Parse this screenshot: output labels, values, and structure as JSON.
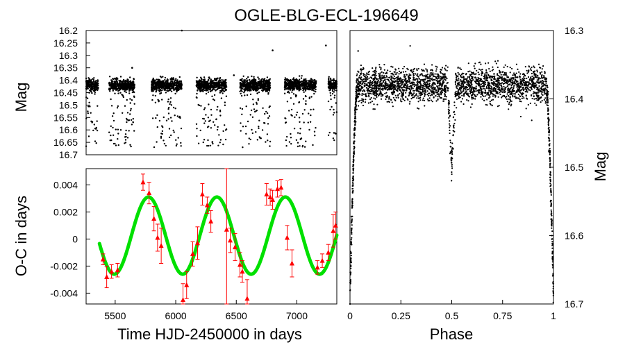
{
  "title": "OGLE-BLG-ECL-196649",
  "colors": {
    "points": "#000000",
    "oc_points": "#ff0000",
    "fit": "#00e000"
  },
  "chart_data": [
    {
      "id": "light-curve",
      "type": "scatter",
      "description_series": "photometry in magnitudes vs time",
      "xlabel": "",
      "ylabel": "Mag",
      "xlim": [
        5260,
        7330
      ],
      "ylim": [
        16.7,
        16.2
      ],
      "y_inverted": true,
      "yticks": [
        "16.2",
        "16.25",
        "16.3",
        "16.35",
        "16.4",
        "16.45",
        "16.5",
        "16.55",
        "16.6",
        "16.65",
        "16.7"
      ],
      "seasons": [
        {
          "x_start": 5260,
          "x_end": 5360,
          "base_mag": 16.42
        },
        {
          "x_start": 5450,
          "x_end": 5660,
          "base_mag": 16.42
        },
        {
          "x_start": 5800,
          "x_end": 6050,
          "base_mag": 16.42
        },
        {
          "x_start": 6170,
          "x_end": 6420,
          "base_mag": 16.42
        },
        {
          "x_start": 6530,
          "x_end": 6780,
          "base_mag": 16.42
        },
        {
          "x_start": 6900,
          "x_end": 7160,
          "base_mag": 16.42
        },
        {
          "x_start": 7260,
          "x_end": 7330,
          "base_mag": 16.42
        }
      ],
      "eclipse_depth_mag": 16.67,
      "outliers": [
        {
          "x": 6050,
          "y": 16.2
        },
        {
          "x": 6800,
          "y": 16.28
        },
        {
          "x": 7240,
          "y": 16.26
        },
        {
          "x": 5640,
          "y": 16.35
        },
        {
          "x": 6480,
          "y": 16.38
        }
      ]
    },
    {
      "id": "oc-diagram",
      "type": "scatter",
      "xlabel": "Time HJD-2450000 in days",
      "ylabel": "O-C in days",
      "xlim": [
        5260,
        7330
      ],
      "ylim": [
        -0.0048,
        0.0052
      ],
      "xticks": [
        "5500",
        "6000",
        "6500",
        "7000"
      ],
      "xtick_values": [
        5500,
        6000,
        6500,
        7000
      ],
      "yticks": [
        "0.004",
        "0.002",
        "0",
        "-0.002",
        "-0.004"
      ],
      "ytick_values": [
        0.004,
        0.002,
        0,
        -0.002,
        -0.004
      ],
      "points": [
        {
          "x": 5400,
          "y": -0.0015,
          "err": 0.0004
        },
        {
          "x": 5430,
          "y": -0.0028,
          "err": 0.0008
        },
        {
          "x": 5470,
          "y": -0.0024,
          "err": 0.0005
        },
        {
          "x": 5520,
          "y": -0.0023,
          "err": 0.0005
        },
        {
          "x": 5730,
          "y": 0.0042,
          "err": 0.0006
        },
        {
          "x": 5780,
          "y": 0.0034,
          "err": 0.0008
        },
        {
          "x": 5820,
          "y": 0.0015,
          "err": 0.0009
        },
        {
          "x": 5850,
          "y": 0.0001,
          "err": 0.001
        },
        {
          "x": 5880,
          "y": -0.0005,
          "err": 0.0013
        },
        {
          "x": 6060,
          "y": -0.0045,
          "err": 0.0012
        },
        {
          "x": 6090,
          "y": -0.0034,
          "err": 0.001
        },
        {
          "x": 6140,
          "y": -0.0011,
          "err": 0.0009
        },
        {
          "x": 6180,
          "y": -0.0003,
          "err": 0.0012
        },
        {
          "x": 6220,
          "y": 0.0033,
          "err": 0.0008
        },
        {
          "x": 6260,
          "y": 0.0025,
          "err": 0.0006
        },
        {
          "x": 6290,
          "y": 0.0013,
          "err": 0.0008
        },
        {
          "x": 6420,
          "y": 0.0007,
          "err": 0.0055
        },
        {
          "x": 6450,
          "y": -0.0001,
          "err": 0.0009
        },
        {
          "x": 6490,
          "y": -0.0006,
          "err": 0.001
        },
        {
          "x": 6530,
          "y": -0.0019,
          "err": 0.0009
        },
        {
          "x": 6550,
          "y": -0.0024,
          "err": 0.0008
        },
        {
          "x": 6590,
          "y": -0.0044,
          "err": 0.0014
        },
        {
          "x": 6750,
          "y": 0.0033,
          "err": 0.0008
        },
        {
          "x": 6780,
          "y": 0.0031,
          "err": 0.0006
        },
        {
          "x": 6800,
          "y": 0.0029,
          "err": 0.0007
        },
        {
          "x": 6840,
          "y": 0.0037,
          "err": 0.0006
        },
        {
          "x": 6870,
          "y": 0.0038,
          "err": 0.0006
        },
        {
          "x": 6920,
          "y": 0.0001,
          "err": 0.0009
        },
        {
          "x": 6960,
          "y": -0.0018,
          "err": 0.001
        },
        {
          "x": 7170,
          "y": -0.0021,
          "err": 0.0005
        },
        {
          "x": 7210,
          "y": -0.0016,
          "err": 0.0005
        },
        {
          "x": 7260,
          "y": -0.001,
          "err": 0.0006
        },
        {
          "x": 7300,
          "y": 0.0006,
          "err": 0.0012
        },
        {
          "x": 7320,
          "y": 0.001,
          "err": 0.001
        }
      ],
      "fit": {
        "type": "sinusoid",
        "offset": 0.00025,
        "amplitude": 0.00285,
        "period_days": 565,
        "reference_max_x": 6340,
        "x_range": [
          5370,
          7330
        ]
      }
    },
    {
      "id": "phased-curve",
      "type": "scatter",
      "xlabel": "Phase",
      "ylabel": "Mag",
      "xlim": [
        0,
        1
      ],
      "ylim": [
        16.7,
        16.3
      ],
      "y_inverted": true,
      "xticks": [
        "0",
        "0.25",
        "0.5",
        "0.75",
        "1"
      ],
      "xtick_values": [
        0,
        0.25,
        0.5,
        0.75,
        1
      ],
      "yticks": [
        "16.3",
        "16.4",
        "16.5",
        "16.6",
        "16.7"
      ],
      "ytick_values": [
        16.3,
        16.4,
        16.5,
        16.6,
        16.7
      ],
      "base_mag": 16.38,
      "primary_eclipse_mag": 16.69,
      "secondary_eclipse_phase": 0.5,
      "secondary_eclipse_mag": 16.5
    }
  ]
}
